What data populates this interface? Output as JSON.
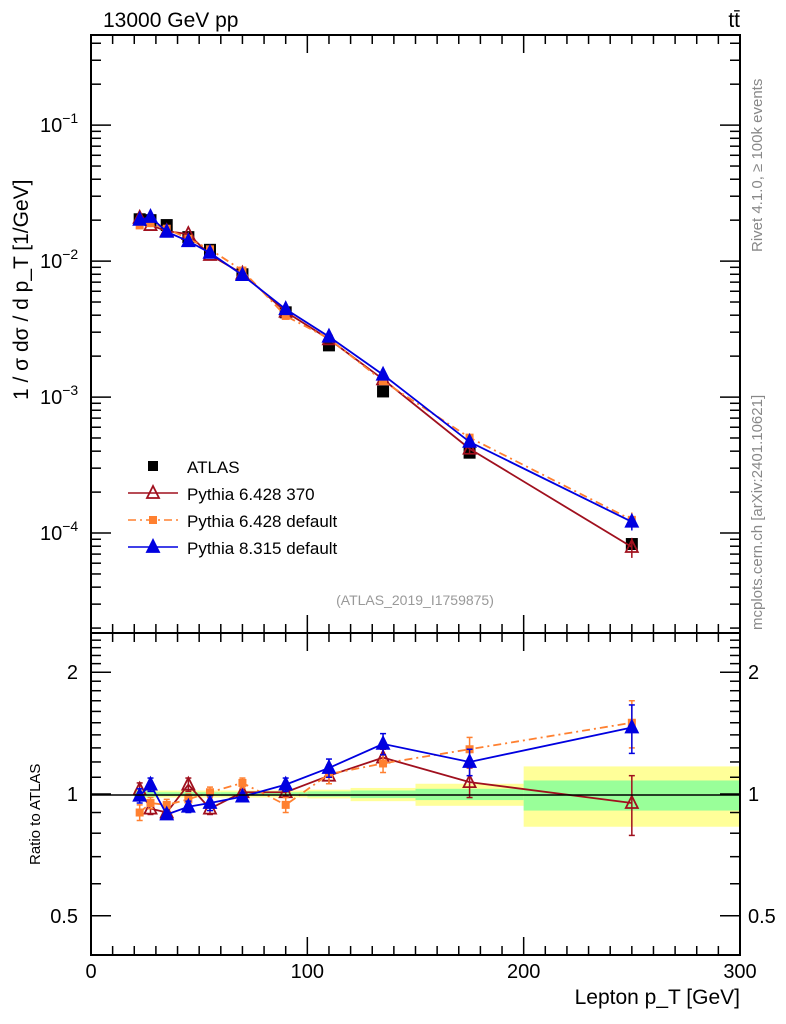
{
  "header": {
    "left": "13000 GeV pp",
    "right": "tt̄"
  },
  "side_text": {
    "top": "Rivet 4.1.0, ≥ 100k events",
    "bottom": "mcplots.cern.ch [arXiv:2401.10621]"
  },
  "watermark": "(ATLAS_2019_I1759875)",
  "chart_data": [
    {
      "type": "line",
      "panel": "main",
      "ylabel": "1 / σ dσ / d p_T [1/GeV]",
      "yscale": "log",
      "ylim": [
        1.84e-05,
        0.46
      ],
      "xlim": [
        0,
        300
      ],
      "ytick_labels": [
        {
          "v": 0.1,
          "l": "10",
          "e": "−1"
        },
        {
          "v": 0.01,
          "l": "10",
          "e": "−2"
        },
        {
          "v": 0.001,
          "l": "10",
          "e": "−3"
        },
        {
          "v": 0.0001,
          "l": "10",
          "e": "−4"
        }
      ],
      "x": [
        22.5,
        27.5,
        35,
        45,
        55,
        70,
        90,
        110,
        135,
        175,
        250
      ],
      "bin_edges": [
        20,
        25,
        30,
        40,
        50,
        60,
        80,
        100,
        120,
        150,
        200,
        300
      ],
      "series": [
        {
          "name": "ATLAS",
          "color": "#000000",
          "marker": "square",
          "line": "none",
          "values": [
            0.0203,
            0.02,
            0.0184,
            0.015,
            0.0121,
            0.008,
            0.0042,
            0.0024,
            0.0011,
            0.00039,
            8.3e-05
          ]
        },
        {
          "name": "Pythia 6.428 370",
          "color": "#a0101e",
          "marker": "open-triangle",
          "line": "solid",
          "values": [
            0.0208,
            0.0184,
            0.0166,
            0.0158,
            0.0111,
            0.00808,
            0.00424,
            0.00266,
            0.00135,
            0.000417,
            7.89e-05
          ]
        },
        {
          "name": "Pythia 6.428 default",
          "color": "#ff8030",
          "marker": "square",
          "line": "dashdot",
          "values": [
            0.0183,
            0.019,
            0.0173,
            0.0146,
            0.0122,
            0.00852,
            0.00395,
            0.00269,
            0.00131,
            0.000503,
            0.000125
          ]
        },
        {
          "name": "Pythia 8.315 default",
          "color": "#0000e0",
          "marker": "triangle",
          "line": "solid",
          "values": [
            0.0201,
            0.0211,
            0.0164,
            0.014,
            0.0115,
            0.00788,
            0.00443,
            0.00278,
            0.00146,
            0.000468,
            0.000121
          ]
        }
      ],
      "legend": "left-lower"
    },
    {
      "type": "line",
      "panel": "ratio",
      "ylabel": "Ratio to ATLAS",
      "xlabel": "Lepton p_T [GeV]",
      "yscale": "log",
      "ylim": [
        0.4,
        2.5
      ],
      "xlim": [
        0,
        300
      ],
      "ytick_labels": [
        {
          "v": 0.5,
          "l": "0.5"
        },
        {
          "v": 1,
          "l": "1"
        },
        {
          "v": 2,
          "l": "2"
        }
      ],
      "xtick_labels": [
        {
          "v": 0,
          "l": "0"
        },
        {
          "v": 100,
          "l": "100"
        },
        {
          "v": 200,
          "l": "200"
        },
        {
          "v": 300,
          "l": "300"
        }
      ],
      "x": [
        22.5,
        27.5,
        35,
        45,
        55,
        70,
        90,
        110,
        135,
        175,
        250
      ],
      "bands": {
        "stat": {
          "color": "#99ff99",
          "lo": [
            0.985,
            0.985,
            0.99,
            0.99,
            0.99,
            0.99,
            0.99,
            0.985,
            0.977,
            0.966,
            0.91
          ],
          "hi": [
            1.015,
            1.015,
            1.01,
            1.01,
            1.01,
            1.01,
            1.01,
            1.015,
            1.02,
            1.03,
            1.08
          ]
        },
        "total": {
          "color": "#ffff99",
          "lo": [
            0.975,
            0.975,
            0.98,
            0.98,
            0.98,
            0.98,
            0.98,
            0.975,
            0.96,
            0.935,
            0.83
          ],
          "hi": [
            1.025,
            1.025,
            1.02,
            1.02,
            1.02,
            1.02,
            1.02,
            1.025,
            1.035,
            1.06,
            1.17
          ]
        }
      },
      "series": [
        {
          "name": "Pythia 6.428 370",
          "color": "#a0101e",
          "values": [
            1.025,
            0.92,
            0.9,
            1.055,
            0.92,
            1.01,
            1.01,
            1.11,
            1.23,
            1.07,
            0.95
          ],
          "errors": [
            0.04,
            0.03,
            0.03,
            0.04,
            0.03,
            0.02,
            0.02,
            0.05,
            0.06,
            0.09,
            0.16
          ]
        },
        {
          "name": "Pythia 6.428 default",
          "color": "#ff8030",
          "values": [
            0.9,
            0.95,
            0.94,
            0.97,
            1.01,
            1.065,
            0.94,
            1.12,
            1.19,
            1.29,
            1.5
          ],
          "errors": [
            0.04,
            0.03,
            0.03,
            0.03,
            0.03,
            0.03,
            0.04,
            0.06,
            0.06,
            0.09,
            0.2
          ]
        },
        {
          "name": "Pythia 8.315 default",
          "color": "#0000e0",
          "values": [
            0.99,
            1.055,
            0.89,
            0.93,
            0.95,
            0.985,
            1.055,
            1.16,
            1.33,
            1.2,
            1.46
          ],
          "errors": [
            0.04,
            0.04,
            0.02,
            0.03,
            0.04,
            0.02,
            0.04,
            0.06,
            0.08,
            0.09,
            0.2
          ]
        }
      ]
    }
  ]
}
